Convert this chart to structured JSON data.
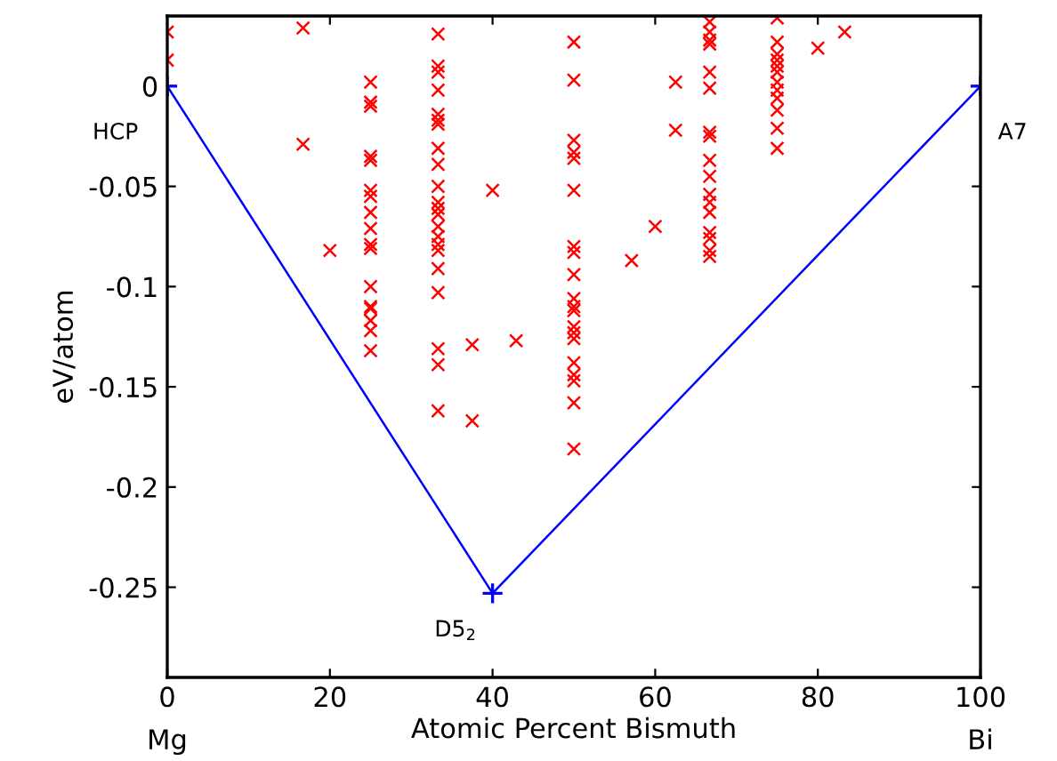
{
  "chart_data": {
    "type": "scatter",
    "xlabel": "Atomic Percent Bismuth",
    "ylabel": "eV/atom",
    "xlim": [
      0,
      100
    ],
    "ylim": [
      -0.295,
      0.035
    ],
    "xticks": [
      0,
      20,
      40,
      60,
      80,
      100
    ],
    "yticks": [
      -0.25,
      -0.2,
      -0.15,
      -0.1,
      -0.05,
      0
    ],
    "grid": false,
    "legend": false,
    "series": [
      {
        "marker": "cross",
        "color": "#ff0000",
        "x": [
          0,
          0,
          16.7,
          16.7,
          20,
          25,
          25,
          25,
          25,
          25,
          25,
          25,
          25,
          25,
          25,
          25,
          25,
          25,
          25,
          25,
          25,
          25,
          33.3,
          33.3,
          33.3,
          33.3,
          33.3,
          33.3,
          33.3,
          33.3,
          33.3,
          33.3,
          33.3,
          33.3,
          33.3,
          33.3,
          33.3,
          33.3,
          33.3,
          33.3,
          33.3,
          33.3,
          33.3,
          33.3,
          37.5,
          37.5,
          40,
          42.9,
          50,
          50,
          50,
          50,
          50,
          50,
          50,
          50,
          50,
          50,
          50,
          50,
          50,
          50,
          50,
          50,
          50,
          50,
          50,
          50,
          57.1,
          60,
          62.5,
          62.5,
          66.7,
          66.7,
          66.7,
          66.7,
          66.7,
          66.7,
          66.7,
          66.7,
          66.7,
          66.7,
          66.7,
          66.7,
          66.7,
          66.7,
          66.7,
          66.7,
          66.7,
          75,
          75,
          75,
          75,
          75,
          75,
          75,
          75,
          75,
          75,
          75,
          75,
          80,
          83.3
        ],
        "values": [
          0.027,
          0.013,
          0.029,
          -0.029,
          -0.082,
          0.002,
          -0.008,
          -0.01,
          -0.035,
          -0.037,
          -0.052,
          -0.055,
          -0.063,
          -0.071,
          -0.079,
          -0.081,
          -0.1,
          -0.11,
          -0.111,
          -0.117,
          -0.122,
          -0.132,
          0.026,
          0.01,
          0.007,
          -0.002,
          -0.014,
          -0.017,
          -0.019,
          -0.031,
          -0.039,
          -0.05,
          -0.058,
          -0.061,
          -0.064,
          -0.07,
          -0.075,
          -0.079,
          -0.082,
          -0.091,
          -0.103,
          -0.131,
          -0.139,
          -0.162,
          -0.129,
          -0.167,
          -0.052,
          -0.127,
          0.022,
          0.003,
          -0.027,
          -0.033,
          -0.036,
          -0.052,
          -0.08,
          -0.083,
          -0.094,
          -0.106,
          -0.11,
          -0.112,
          -0.12,
          -0.123,
          -0.126,
          -0.138,
          -0.144,
          -0.147,
          -0.158,
          -0.181,
          -0.087,
          -0.07,
          0.002,
          -0.022,
          0.032,
          0.027,
          0.023,
          0.021,
          0.007,
          -0.001,
          -0.023,
          -0.025,
          -0.037,
          -0.045,
          -0.054,
          -0.058,
          -0.063,
          -0.073,
          -0.076,
          -0.082,
          -0.085,
          0.034,
          0.022,
          0.016,
          0.013,
          0.01,
          0.007,
          0.002,
          -0.002,
          -0.006,
          -0.012,
          -0.021,
          -0.031,
          0.019,
          0.027
        ]
      },
      {
        "type": "line",
        "marker": "plus",
        "color": "#0000ff",
        "x": [
          0,
          40,
          100
        ],
        "values": [
          0,
          -0.253,
          0
        ]
      }
    ],
    "annotations": [
      {
        "text": "HCP",
        "x": 0,
        "y": 0
      },
      {
        "text": "D5$_{2}$",
        "x": 40,
        "y": -0.253
      },
      {
        "text": "A7",
        "x": 100,
        "y": 0
      },
      "Mg",
      "Bi"
    ]
  }
}
